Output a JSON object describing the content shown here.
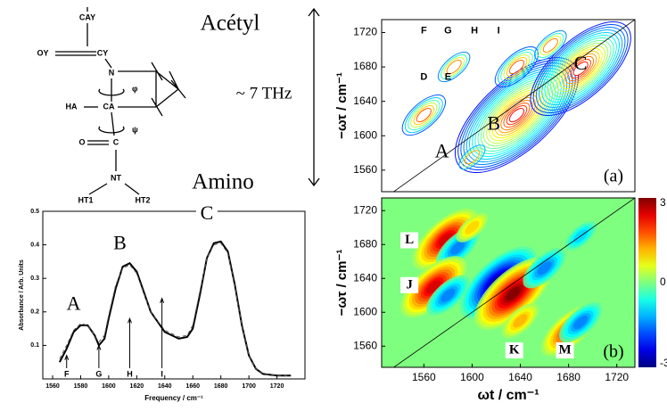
{
  "molecule": {
    "labels": {
      "cay": "CAY",
      "oy": "OY",
      "cy": "CY",
      "n": "N",
      "phi": "φ",
      "ha": "HA",
      "ca": "CA",
      "psi": "ψ",
      "o": "O",
      "c": "C",
      "nt": "NT",
      "ht1": "HT1",
      "ht2": "HT2"
    },
    "acetyl": "Acétyl",
    "amino": "Amino",
    "span": "~ 7 THz"
  },
  "chart_data": [
    {
      "type": "line",
      "xlabel": "Frequency / cm⁻¹",
      "ylabel": "Absorbance / Arb. Units",
      "xlim": [
        1553,
        1740
      ],
      "ylim": [
        0,
        0.5
      ],
      "xticks": [
        1560,
        1580,
        1600,
        1620,
        1640,
        1660,
        1680,
        1700,
        1720
      ],
      "yticks": [
        0.1,
        0.2,
        0.3,
        0.4,
        0.5
      ],
      "x": [
        1565,
        1570,
        1575,
        1580,
        1585,
        1590,
        1593,
        1597,
        1600,
        1605,
        1610,
        1615,
        1620,
        1625,
        1630,
        1640,
        1650,
        1656,
        1660,
        1665,
        1670,
        1675,
        1680,
        1685,
        1690,
        1695,
        1700,
        1705,
        1710,
        1720,
        1730
      ],
      "series": [
        {
          "color": "#000",
          "dash": false,
          "values": [
            0.05,
            0.09,
            0.14,
            0.16,
            0.16,
            0.13,
            0.1,
            0.12,
            0.18,
            0.27,
            0.335,
            0.345,
            0.32,
            0.26,
            0.2,
            0.14,
            0.12,
            0.125,
            0.15,
            0.25,
            0.36,
            0.405,
            0.41,
            0.38,
            0.28,
            0.16,
            0.07,
            0.03,
            0.015,
            0.01,
            0.01
          ]
        },
        {
          "color": "#555",
          "dash": true,
          "values": [
            0.06,
            0.1,
            0.145,
            0.165,
            0.16,
            0.13,
            0.11,
            0.13,
            0.19,
            0.28,
            0.33,
            0.34,
            0.315,
            0.255,
            0.2,
            0.145,
            0.125,
            0.13,
            0.16,
            0.26,
            0.36,
            0.4,
            0.405,
            0.375,
            0.275,
            0.16,
            0.07,
            0.03,
            0.015,
            0.01,
            0.01
          ]
        }
      ],
      "peak_labels": [
        {
          "label": "A",
          "x": 1575,
          "y": 0.22
        },
        {
          "label": "B",
          "x": 1608,
          "y": 0.4
        },
        {
          "label": "C",
          "x": 1670,
          "y": 0.49
        }
      ],
      "markers": [
        {
          "label": "F",
          "x": 1570,
          "y": 0.07
        },
        {
          "label": "G",
          "x": 1593,
          "y": 0.1
        },
        {
          "label": "H",
          "x": 1615,
          "y": 0.18
        },
        {
          "label": "I",
          "x": 1638,
          "y": 0.24
        }
      ]
    },
    {
      "type": "contour",
      "panel": "(a)",
      "ylabel": "−ωτ / cm⁻¹",
      "xlim": [
        1525,
        1735
      ],
      "ylim": [
        1535,
        1735
      ],
      "yticks": [
        1560,
        1600,
        1640,
        1680,
        1720
      ],
      "peaks": [
        {
          "x": 1560,
          "y": 1624,
          "v": 1.5
        },
        {
          "x": 1637,
          "y": 1624,
          "v": 5
        },
        {
          "x": 1690,
          "y": 1678,
          "v": 4
        },
        {
          "x": 1637,
          "y": 1680,
          "v": 1.5
        },
        {
          "x": 1585,
          "y": 1680,
          "v": 1
        },
        {
          "x": 1665,
          "y": 1705,
          "v": 1
        },
        {
          "x": 1600,
          "y": 1575,
          "v": 0.8
        }
      ],
      "labels": [
        {
          "label": "A",
          "x": 1575,
          "y": 1580
        },
        {
          "label": "B",
          "x": 1618,
          "y": 1612
        },
        {
          "label": "C",
          "x": 1690,
          "y": 1682
        },
        {
          "label": "D",
          "x": 1560,
          "y": 1668
        },
        {
          "label": "E",
          "x": 1580,
          "y": 1668
        },
        {
          "label": "F",
          "x": 1560,
          "y": 1722
        },
        {
          "label": "G",
          "x": 1580,
          "y": 1722
        },
        {
          "label": "H",
          "x": 1602,
          "y": 1722
        },
        {
          "label": "I",
          "x": 1622,
          "y": 1722
        }
      ]
    },
    {
      "type": "contour",
      "panel": "(b)",
      "filled": true,
      "xlabel": "ωt / cm⁻¹",
      "ylabel": "−ωτ / cm⁻¹",
      "xlim": [
        1525,
        1735
      ],
      "ylim": [
        1535,
        1735
      ],
      "xticks": [
        1560,
        1600,
        1640,
        1680,
        1720
      ],
      "yticks": [
        1560,
        1600,
        1640,
        1680,
        1720
      ],
      "clim": [
        -3,
        3
      ],
      "cticks": [
        3,
        0,
        -3
      ],
      "peaks": [
        {
          "x": 1578,
          "y": 1686,
          "v": 2.5
        },
        {
          "x": 1588,
          "y": 1676,
          "v": -1.5
        },
        {
          "x": 1568,
          "y": 1630,
          "v": 2.5
        },
        {
          "x": 1580,
          "y": 1620,
          "v": -1.5
        },
        {
          "x": 1622,
          "y": 1635,
          "v": -3
        },
        {
          "x": 1634,
          "y": 1622,
          "v": 3
        },
        {
          "x": 1680,
          "y": 1578,
          "v": 2
        },
        {
          "x": 1690,
          "y": 1588,
          "v": -1.5
        },
        {
          "x": 1660,
          "y": 1652,
          "v": -1.5
        },
        {
          "x": 1600,
          "y": 1700,
          "v": 1
        },
        {
          "x": 1690,
          "y": 1690,
          "v": -1
        },
        {
          "x": 1640,
          "y": 1590,
          "v": 1.2
        }
      ],
      "labels": [
        {
          "label": "L",
          "x": 1548,
          "y": 1685
        },
        {
          "label": "J",
          "x": 1548,
          "y": 1632
        },
        {
          "label": "K",
          "x": 1635,
          "y": 1555
        },
        {
          "label": "M",
          "x": 1677,
          "y": 1555
        }
      ]
    }
  ]
}
